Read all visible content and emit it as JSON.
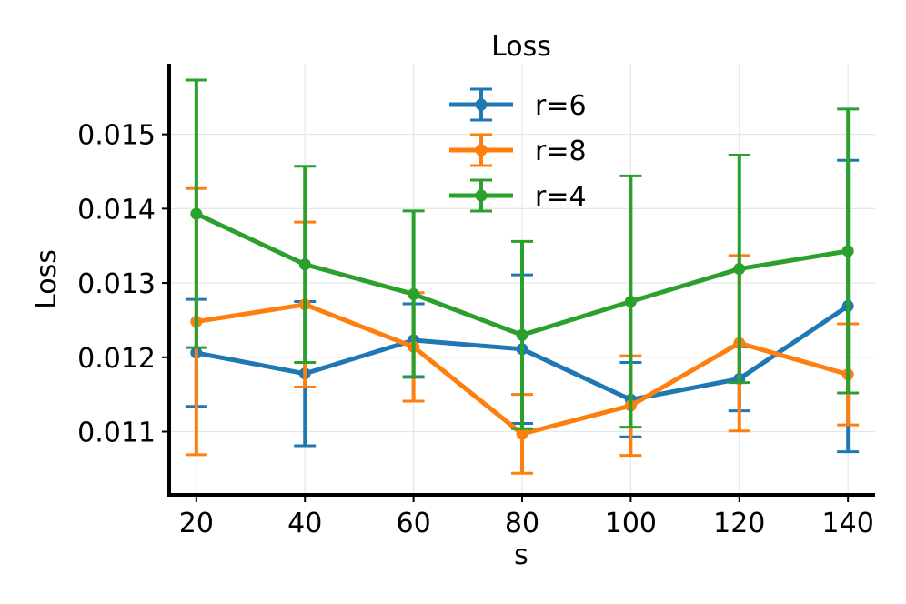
{
  "chart_data": {
    "type": "line",
    "title": "Loss",
    "xlabel": "s",
    "ylabel": "Loss",
    "x": [
      20,
      40,
      60,
      80,
      100,
      120,
      140
    ],
    "xlim": [
      15,
      145
    ],
    "ylim": [
      0.01015,
      0.01595
    ],
    "xticks": [
      20,
      40,
      60,
      80,
      100,
      120,
      140
    ],
    "xtick_labels": [
      "20",
      "40",
      "60",
      "80",
      "100",
      "120",
      "140"
    ],
    "yticks": [
      0.011,
      0.012,
      0.013,
      0.014,
      0.015
    ],
    "ytick_labels": [
      "0.011",
      "0.012",
      "0.013",
      "0.014",
      "0.015"
    ],
    "grid": true,
    "legend_position": "top-center",
    "series": [
      {
        "name": "r=6",
        "color": "#1f77b4",
        "values": [
          0.01206,
          0.01178,
          0.01223,
          0.01211,
          0.01143,
          0.01171,
          0.01269
        ],
        "error": [
          0.00072,
          0.00097,
          0.00049,
          0.001,
          0.0005,
          0.00043,
          0.00196
        ]
      },
      {
        "name": "r=8",
        "color": "#ff7f0e",
        "values": [
          0.01248,
          0.01271,
          0.01214,
          0.01097,
          0.01135,
          0.01219,
          0.01177
        ],
        "error": [
          0.00179,
          0.00111,
          0.00073,
          0.00053,
          0.00067,
          0.00118,
          0.00068
        ]
      },
      {
        "name": "r=4",
        "color": "#2ca02c",
        "values": [
          0.01393,
          0.01325,
          0.01285,
          0.0123,
          0.01275,
          0.01319,
          0.01343
        ],
        "error": [
          0.0018,
          0.00132,
          0.00112,
          0.00126,
          0.00169,
          0.00153,
          0.00191
        ]
      }
    ]
  }
}
